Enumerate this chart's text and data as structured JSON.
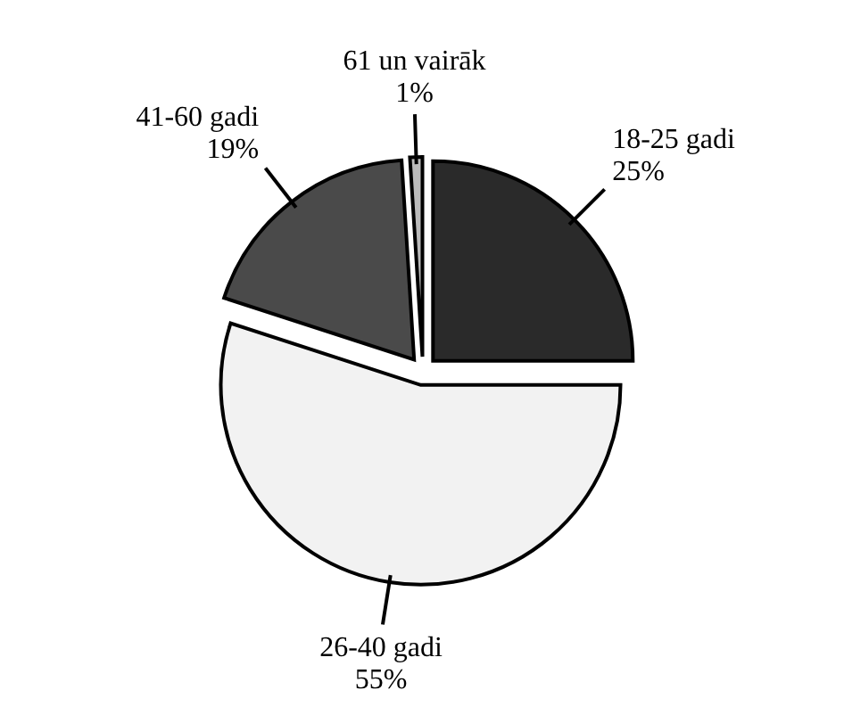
{
  "chart_data": {
    "type": "pie",
    "categories": [
      "18-25 gadi",
      "26-40 gadi",
      "41-60 gadi",
      "61 un vairāk"
    ],
    "values": [
      25,
      55,
      19,
      1
    ],
    "value_labels": [
      "25%",
      "55%",
      "19%",
      "1%"
    ],
    "colors": [
      "#2a2a2a",
      "#f2f2f2",
      "#4a4a4a",
      "#bbbbbb"
    ]
  }
}
